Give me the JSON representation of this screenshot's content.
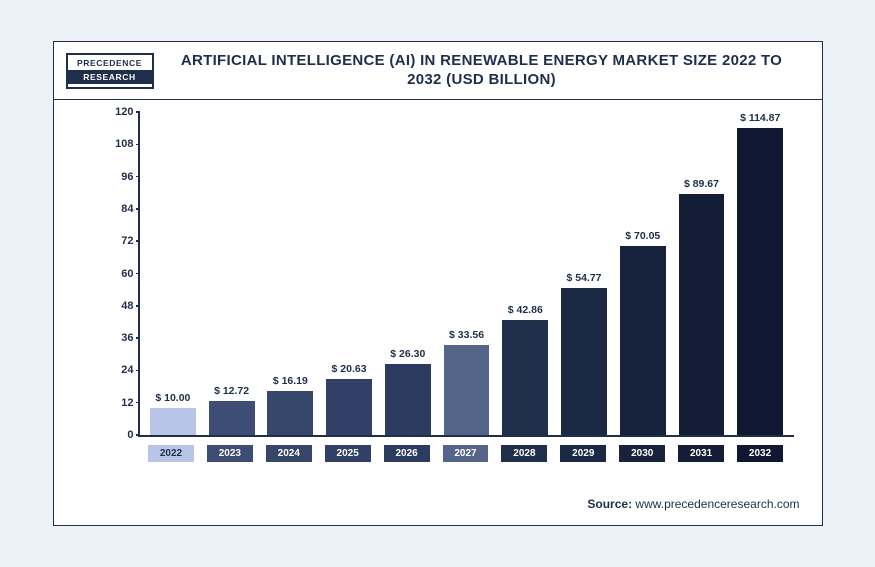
{
  "logo": {
    "line1": "PRECEDENCE",
    "line2": "RESEARCH"
  },
  "title": "ARTIFICIAL INTELLIGENCE (AI) IN RENEWABLE ENERGY MARKET SIZE 2022 TO 2032 (USD BILLION)",
  "source_label": "Source:",
  "source_value": "www.precedenceresearch.com",
  "chart": {
    "type": "bar",
    "ylim": [
      0,
      120
    ],
    "ytick_step": 12,
    "yticks": [
      0,
      12,
      24,
      36,
      48,
      60,
      72,
      84,
      96,
      108,
      120
    ],
    "axis_color": "#1f2e4a",
    "label_fontsize": 10.5,
    "tick_fontsize": 11,
    "background": "#ffffff",
    "bar_width_pct": 78,
    "categories": [
      "2022",
      "2023",
      "2024",
      "2025",
      "2026",
      "2027",
      "2028",
      "2029",
      "2030",
      "2031",
      "2032"
    ],
    "values": [
      10.0,
      12.72,
      16.19,
      20.63,
      26.3,
      33.56,
      42.86,
      54.77,
      70.05,
      89.67,
      114.87
    ],
    "value_labels": [
      "$ 10.00",
      "$ 12.72",
      "$ 16.19",
      "$ 20.63",
      "$ 26.30",
      "$ 33.56",
      "$ 42.86",
      "$ 54.77",
      "$ 70.05",
      "$ 89.67",
      "$ 114.87"
    ],
    "bar_colors": [
      "#b9c5e6",
      "#3d4d73",
      "#37466b",
      "#324067",
      "#2e3b60",
      "#556589",
      "#1f2e4a",
      "#1b2944",
      "#17233d",
      "#131d36",
      "#0f1830"
    ],
    "xcat_bg": [
      "#b9c5e6",
      "#3d4d73",
      "#37466b",
      "#324067",
      "#2e3b60",
      "#556589",
      "#1f2e4a",
      "#1b2944",
      "#17233d",
      "#131d36",
      "#0f1830"
    ],
    "xcat_fg": [
      "#1f2e4a",
      "#ffffff",
      "#ffffff",
      "#ffffff",
      "#ffffff",
      "#ffffff",
      "#ffffff",
      "#ffffff",
      "#ffffff",
      "#ffffff",
      "#ffffff"
    ]
  }
}
